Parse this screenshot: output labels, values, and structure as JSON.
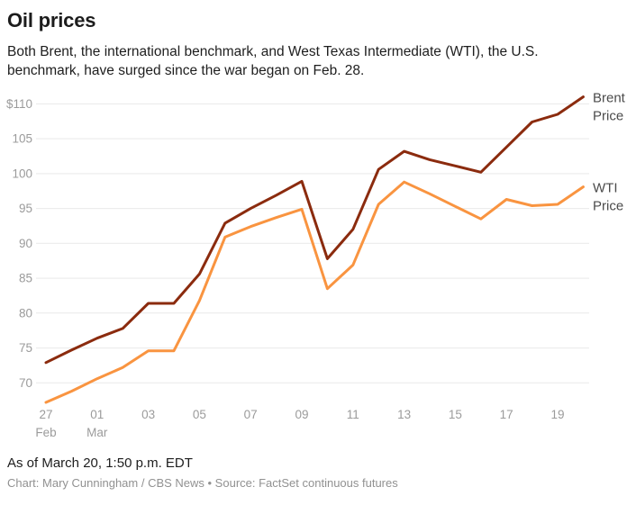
{
  "header": {
    "title": "Oil prices",
    "subtitle": "Both Brent, the international benchmark, and West Texas Intermediate (WTI), the U.S. benchmark, have surged since the war began on Feb. 28."
  },
  "chart_data": {
    "type": "line",
    "title": "Oil prices",
    "unit": "USD per barrel",
    "grid": "horizontal-only",
    "legend_position": "right-of-line-ends",
    "ylim": [
      66,
      112.5
    ],
    "x": [
      "Feb 27",
      "Feb 28",
      "Mar 01",
      "Mar 02",
      "Mar 03",
      "Mar 04",
      "Mar 05",
      "Mar 06",
      "Mar 07",
      "Mar 08",
      "Mar 09",
      "Mar 10",
      "Mar 11",
      "Mar 12",
      "Mar 13",
      "Mar 14",
      "Mar 15",
      "Mar 16",
      "Mar 17",
      "Mar 18",
      "Mar 19",
      "Mar 20"
    ],
    "series": [
      {
        "id": "brent",
        "name": "Brent Price",
        "color": "#8b2b0e",
        "values": [
          72.9,
          74.7,
          76.4,
          77.8,
          81.4,
          81.4,
          85.6,
          92.9,
          95.0,
          96.9,
          98.9,
          87.8,
          92.0,
          100.6,
          103.2,
          102.0,
          101.1,
          100.2,
          103.8,
          107.4,
          108.5,
          111.0
        ]
      },
      {
        "id": "wti",
        "name": "WTI Price",
        "color": "#f99440",
        "values": [
          67.2,
          68.8,
          70.6,
          72.2,
          74.6,
          74.6,
          81.8,
          90.9,
          92.4,
          93.7,
          94.9,
          83.5,
          86.9,
          95.6,
          98.8,
          97.1,
          95.3,
          93.5,
          96.3,
          95.4,
          95.6,
          98.1
        ]
      }
    ],
    "y_ticks": [
      {
        "value": 110,
        "label": "$110"
      },
      {
        "value": 105,
        "label": "105"
      },
      {
        "value": 100,
        "label": "100"
      },
      {
        "value": 95,
        "label": "95"
      },
      {
        "value": 90,
        "label": "90"
      },
      {
        "value": 85,
        "label": "85"
      },
      {
        "value": 80,
        "label": "80"
      },
      {
        "value": 75,
        "label": "75"
      },
      {
        "value": 70,
        "label": "70"
      }
    ],
    "x_ticks": [
      {
        "index": 0,
        "label": "27",
        "sub": "Feb"
      },
      {
        "index": 2,
        "label": "01",
        "sub": "Mar"
      },
      {
        "index": 4,
        "label": "03"
      },
      {
        "index": 6,
        "label": "05"
      },
      {
        "index": 8,
        "label": "07"
      },
      {
        "index": 10,
        "label": "09"
      },
      {
        "index": 12,
        "label": "11"
      },
      {
        "index": 14,
        "label": "13"
      },
      {
        "index": 16,
        "label": "15"
      },
      {
        "index": 18,
        "label": "17"
      },
      {
        "index": 20,
        "label": "19"
      }
    ],
    "colors": {
      "grid": "#e9e9e9",
      "axis_label": "#9b9b9b",
      "legend_text": "#4b4b4b"
    }
  },
  "footer": {
    "as_of": "As of March 20, 1:50 p.m. EDT",
    "credit": "Chart: Mary Cunningham / CBS News • Source: FactSet continuous futures"
  }
}
